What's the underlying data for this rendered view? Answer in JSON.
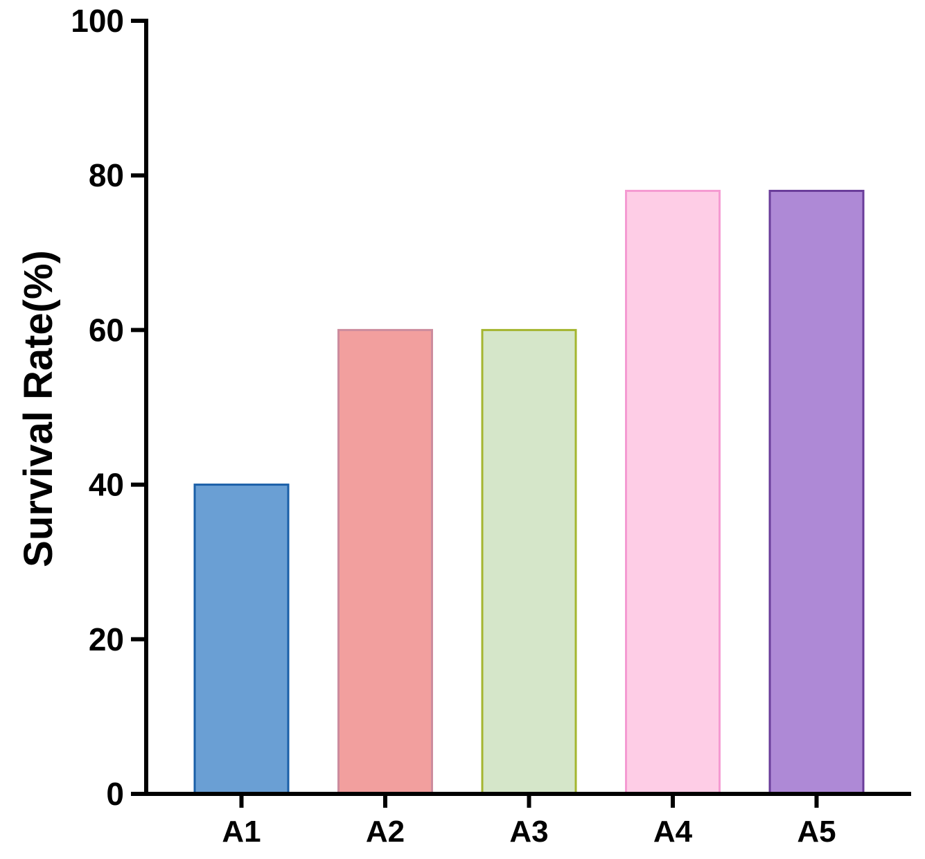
{
  "chart_data": {
    "type": "bar",
    "title": "",
    "xlabel": "",
    "ylabel": "Survival Rate(%)",
    "ylim": [
      0,
      100
    ],
    "yticks": [
      0,
      20,
      40,
      60,
      80,
      100
    ],
    "grid": false,
    "legend": "none",
    "categories": [
      "A1",
      "A2",
      "A3",
      "A4",
      "A5"
    ],
    "values": [
      40,
      60,
      60,
      78,
      78
    ],
    "fill_colors": [
      "#6a9fd4",
      "#f29f9e",
      "#d5e6c9",
      "#fecde6",
      "#ae89d6"
    ],
    "stroke_colors": [
      "#1a5fa8",
      "#cc8c9e",
      "#a4b52f",
      "#f59ad2",
      "#6a3d9a"
    ]
  }
}
